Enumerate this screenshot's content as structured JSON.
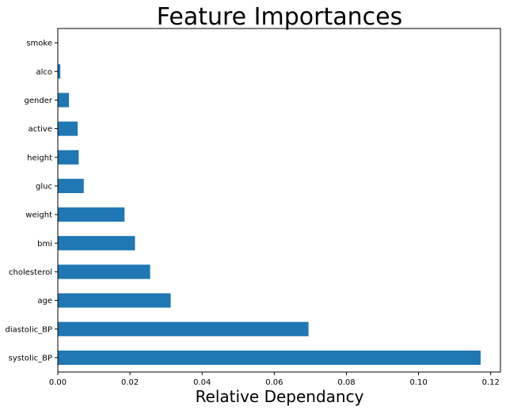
{
  "chart_data": {
    "type": "bar",
    "orientation": "horizontal",
    "title": "Feature Importances",
    "xlabel": "Relative Dependancy",
    "ylabel": "",
    "categories": [
      "systolic_BP",
      "diastolic_BP",
      "age",
      "cholesterol",
      "bmi",
      "weight",
      "gluc",
      "height",
      "active",
      "gender",
      "alco",
      "smoke"
    ],
    "values": [
      0.1172,
      0.0695,
      0.0313,
      0.0256,
      0.0214,
      0.0185,
      0.0072,
      0.0058,
      0.0055,
      0.0031,
      0.0007,
      0.0001
    ],
    "xlim": [
      0,
      0.1227
    ],
    "xticks": [
      "0.00",
      "0.02",
      "0.04",
      "0.06",
      "0.08",
      "0.10",
      "0.12"
    ],
    "grid": false,
    "legend": "none",
    "bar_color": "#1f77b4"
  }
}
